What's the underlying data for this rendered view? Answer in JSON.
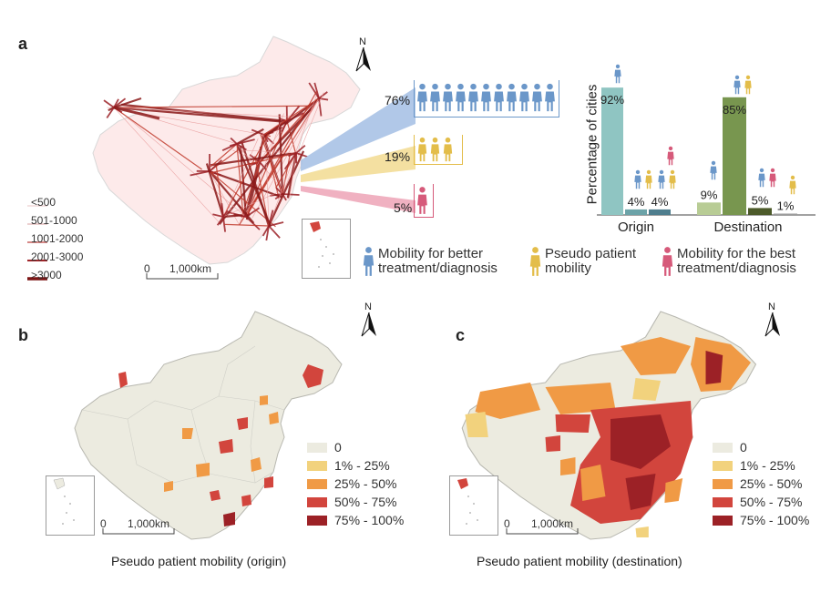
{
  "panel_a": {
    "letter": "a",
    "north": "N",
    "flow_legend": [
      "<500",
      "501-1000",
      "1001-2000",
      "2001-3000",
      ">3000"
    ],
    "scale_zero": "0",
    "scale_label": "1,000km",
    "shares": [
      {
        "pct": "76%",
        "people": 11,
        "color": "#6b97c9"
      },
      {
        "pct": "19%",
        "people": 3,
        "color": "#e3bd4a"
      },
      {
        "pct": "5%",
        "people": 1,
        "color": "#d65a7a"
      }
    ],
    "type_legend": [
      {
        "text": "Mobility for better treatment/diagnosis",
        "line1": "Mobility for better",
        "line2": "treatment/diagnosis",
        "color": "#6b97c9"
      },
      {
        "text": "Pseudo patient mobility",
        "line1": "Pseudo patient",
        "line2": "mobility",
        "color": "#e3bd4a"
      },
      {
        "text": "Mobility for the best treatment/diagnosis",
        "line1": "Mobility for the best",
        "line2": "treatment/diagnosis",
        "color": "#d65a7a"
      }
    ]
  },
  "chart_data": {
    "type": "bar",
    "ylabel": "Percentage of cities",
    "categories": [
      "Origin",
      "Destination"
    ],
    "groups": [
      {
        "name": "Origin",
        "bars": [
          {
            "value": 92,
            "label": "92%",
            "color": "#8fc5c2"
          },
          {
            "value": 4,
            "label": "4%",
            "color": "#6ca3a8"
          },
          {
            "value": 4,
            "label": "4%",
            "color": "#4f7e8e"
          }
        ]
      },
      {
        "name": "Destination",
        "bars": [
          {
            "value": 9,
            "label": "9%",
            "color": "#b8cc95"
          },
          {
            "value": 85,
            "label": "85%",
            "color": "#78964f"
          },
          {
            "value": 5,
            "label": "5%",
            "color": "#4c5a2a"
          },
          {
            "value": 1,
            "label": "1%",
            "color": "#9c9c9c"
          }
        ]
      }
    ],
    "ylim": [
      0,
      100
    ]
  },
  "panel_b": {
    "letter": "b",
    "north": "N",
    "legend": [
      {
        "label": "0",
        "color": "#ecebe0"
      },
      {
        "label": "1% - 25%",
        "color": "#f2d27d"
      },
      {
        "label": "25% - 50%",
        "color": "#f09a45"
      },
      {
        "label": "50% - 75%",
        "color": "#d2453d"
      },
      {
        "label": "75% - 100%",
        "color": "#9c2126"
      }
    ],
    "scale_zero": "0",
    "scale_label": "1,000km",
    "caption": "Pseudo patient mobility (origin)"
  },
  "panel_c": {
    "letter": "c",
    "north": "N",
    "legend": [
      {
        "label": "0",
        "color": "#ecebe0"
      },
      {
        "label": "1% - 25%",
        "color": "#f2d27d"
      },
      {
        "label": "25% - 50%",
        "color": "#f09a45"
      },
      {
        "label": "50% - 75%",
        "color": "#d2453d"
      },
      {
        "label": "75% - 100%",
        "color": "#9c2126"
      }
    ],
    "scale_zero": "0",
    "scale_label": "1,000km",
    "caption": "Pseudo patient mobility (destination)"
  }
}
